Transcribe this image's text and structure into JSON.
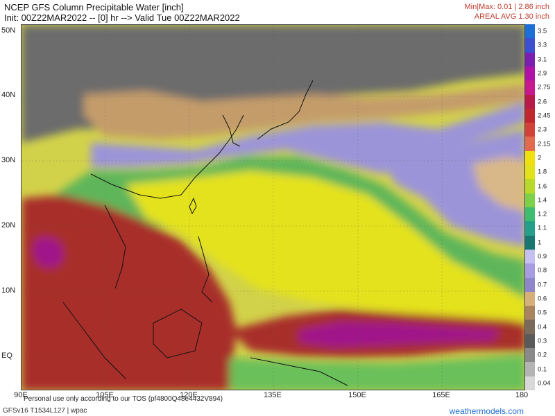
{
  "header": {
    "title": "NCEP GFS Column Precipitable Water [inch]",
    "init": "Init: 00Z22MAR2022 -- [0] hr --> Valid Tue 00Z22MAR2022",
    "minmax": "Min|Max: 0.01 | 2.86 inch",
    "areal": "AREAL AVG 1.30 inch"
  },
  "axes": {
    "lat_labels": [
      "50N",
      "40N",
      "30N",
      "20N",
      "10N",
      "EQ"
    ],
    "lon_labels": [
      "90E",
      "105E",
      "120E",
      "135E",
      "150E",
      "165E",
      "180"
    ]
  },
  "colorbar": {
    "ticks": [
      "3.5",
      "3.3",
      "3.1",
      "2.9",
      "2.75",
      "2.6",
      "2.45",
      "2.3",
      "2.15",
      "2",
      "1.8",
      "1.6",
      "1.4",
      "1.2",
      "1.1",
      "1",
      "0.9",
      "0.8",
      "0.7",
      "0.6",
      "0.5",
      "0.4",
      "0.3",
      "0.2",
      "0.1",
      "0.04"
    ],
    "colors": [
      "#1c6fd6",
      "#3b4fd0",
      "#7a1fb0",
      "#b012a8",
      "#c8188e",
      "#b81a4a",
      "#c0282e",
      "#d2423a",
      "#e26a4e",
      "#f0e010",
      "#e2e21a",
      "#b8d82a",
      "#7ed04a",
      "#3dbd70",
      "#25a088",
      "#187870",
      "#c6c0f0",
      "#a79ce0",
      "#8d86c8",
      "#d6b07a",
      "#a88460",
      "#7a6a5c",
      "#5a5a5a",
      "#8a8a8a",
      "#b4b4b4",
      "#d8d8d8"
    ]
  },
  "map_colors": {
    "ocean_base": "#d2d24a",
    "dry_gray": "#6f6f6f",
    "tan": "#c49c6a",
    "lavender": "#9c94d8",
    "green": "#5fb65a",
    "yellow": "#e4e21c",
    "red": "#a82e2c",
    "magenta": "#a0188a",
    "coast": "#111111"
  },
  "footer": {
    "tos": "Personal use only according to our TOS (pf4800Q48e4432V894)",
    "run": "GFSv16 T1534L127 | wpac",
    "brand": "weathermodels.com"
  }
}
